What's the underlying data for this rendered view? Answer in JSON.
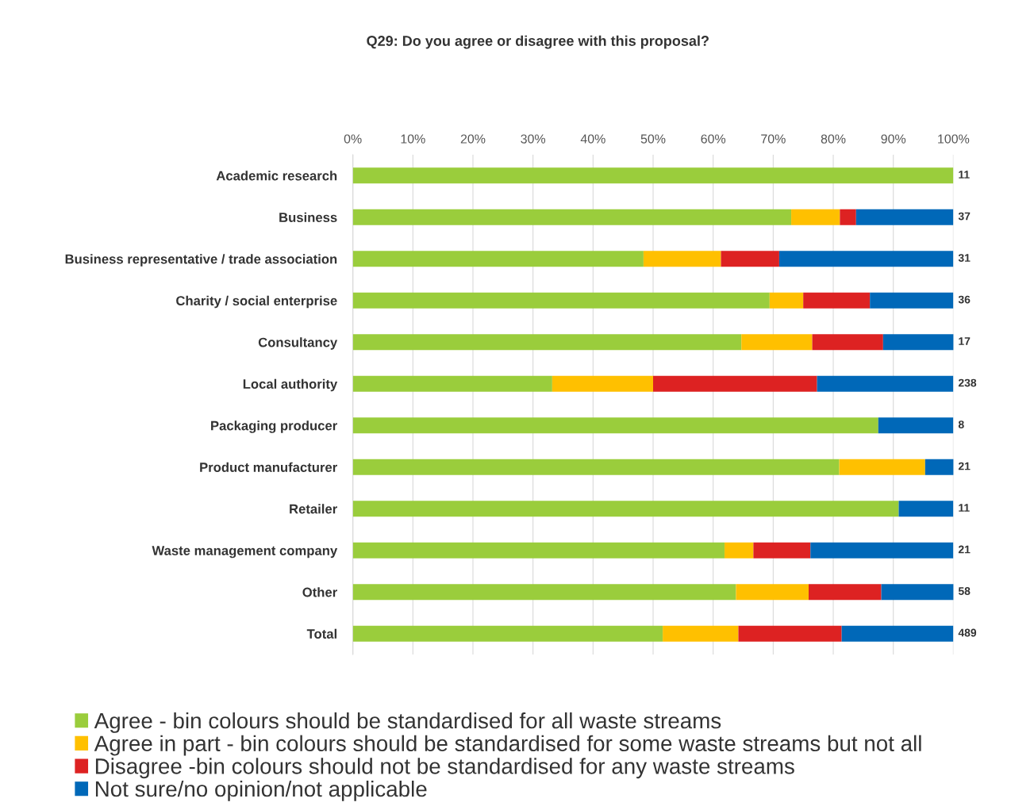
{
  "chart_data": {
    "type": "bar",
    "orientation": "horizontal",
    "stacked": true,
    "title": "Q29: Do you agree or disagree with this proposal?",
    "categories": [
      "Academic research",
      "Business",
      "Business representative / trade association",
      "Charity / social enterprise",
      "Consultancy",
      "Local authority",
      "Packaging producer",
      "Product manufacturer",
      "Retailer",
      "Waste management company",
      "Other",
      "Total"
    ],
    "series": [
      {
        "name": "Agree - bin colours should be standardised for all waste streams",
        "color": "#9acd3c",
        "values": [
          100,
          73.0,
          48.4,
          69.4,
          64.7,
          33.2,
          87.5,
          81.0,
          90.9,
          61.9,
          63.8,
          51.6
        ]
      },
      {
        "name": "Agree in part - bin colours should be standardised for some waste streams but not all",
        "color": "#ffc000",
        "values": [
          0,
          8.1,
          12.9,
          5.6,
          11.8,
          16.8,
          0,
          14.3,
          0,
          4.8,
          12.1,
          12.6
        ]
      },
      {
        "name": "Disagree -bin colours should not be standardised for any waste streams",
        "color": "#dd2222",
        "values": [
          0,
          2.7,
          9.7,
          11.1,
          11.8,
          27.3,
          0,
          0,
          0,
          9.5,
          12.1,
          17.2
        ]
      },
      {
        "name": "Not sure/no opinion/not applicable",
        "color": "#0068b8",
        "values": [
          0,
          16.2,
          29.0,
          13.9,
          11.8,
          22.7,
          12.5,
          4.8,
          9.1,
          23.8,
          12.1,
          18.6
        ]
      }
    ],
    "annotations": [
      "11",
      "37",
      "31",
      "36",
      "17",
      "238",
      "8",
      "21",
      "11",
      "21",
      "58",
      "489"
    ],
    "xlim": [
      0,
      100
    ],
    "xticks": [
      {
        "value": 0,
        "label": "0%"
      },
      {
        "value": 10,
        "label": "10%"
      },
      {
        "value": 20,
        "label": "20%"
      },
      {
        "value": 30,
        "label": "30%"
      },
      {
        "value": 40,
        "label": "40%"
      },
      {
        "value": 50,
        "label": "50%"
      },
      {
        "value": 60,
        "label": "60%"
      },
      {
        "value": 70,
        "label": "70%"
      },
      {
        "value": 80,
        "label": "80%"
      },
      {
        "value": 90,
        "label": "90%"
      },
      {
        "value": 100,
        "label": "100%"
      }
    ],
    "grid": "x",
    "legend": "bottom"
  }
}
